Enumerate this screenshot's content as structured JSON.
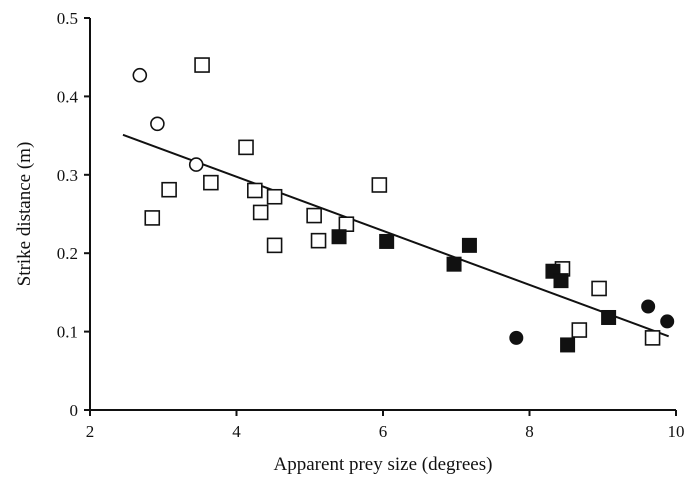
{
  "chart_data": {
    "type": "scatter",
    "title": "",
    "xlabel": "Apparent prey size (degrees)",
    "ylabel": "Strike distance (m)",
    "xlim": [
      2,
      10
    ],
    "ylim": [
      0,
      0.5
    ],
    "x_ticks": [
      "2",
      "4",
      "6",
      "8",
      "10"
    ],
    "y_ticks": [
      "0",
      "0.1",
      "0.2",
      "0.3",
      "0.4",
      "0.5"
    ],
    "grid": false,
    "legend": "none",
    "series": [
      {
        "marker": "circle-open",
        "points": [
          [
            2.68,
            0.427
          ],
          [
            2.92,
            0.365
          ],
          [
            3.45,
            0.313
          ]
        ]
      },
      {
        "marker": "square-open",
        "points": [
          [
            2.85,
            0.245
          ],
          [
            3.08,
            0.281
          ],
          [
            3.53,
            0.44
          ],
          [
            3.65,
            0.29
          ],
          [
            4.13,
            0.335
          ],
          [
            4.25,
            0.28
          ],
          [
            4.33,
            0.252
          ],
          [
            4.52,
            0.272
          ],
          [
            4.52,
            0.21
          ],
          [
            5.06,
            0.248
          ],
          [
            5.12,
            0.216
          ],
          [
            5.5,
            0.237
          ],
          [
            5.95,
            0.287
          ],
          [
            8.45,
            0.18
          ],
          [
            8.68,
            0.102
          ],
          [
            8.95,
            0.155
          ],
          [
            9.68,
            0.092
          ]
        ]
      },
      {
        "marker": "square-filled",
        "points": [
          [
            5.4,
            0.221
          ],
          [
            6.05,
            0.215
          ],
          [
            6.97,
            0.186
          ],
          [
            7.18,
            0.21
          ],
          [
            8.32,
            0.177
          ],
          [
            8.43,
            0.165
          ],
          [
            8.52,
            0.083
          ],
          [
            9.08,
            0.118
          ]
        ]
      },
      {
        "marker": "circle-filled",
        "points": [
          [
            7.82,
            0.092
          ],
          [
            9.62,
            0.132
          ],
          [
            9.88,
            0.113
          ]
        ]
      }
    ],
    "regression_line": {
      "x": [
        2.45,
        9.9
      ],
      "y": [
        0.351,
        0.094
      ]
    }
  }
}
